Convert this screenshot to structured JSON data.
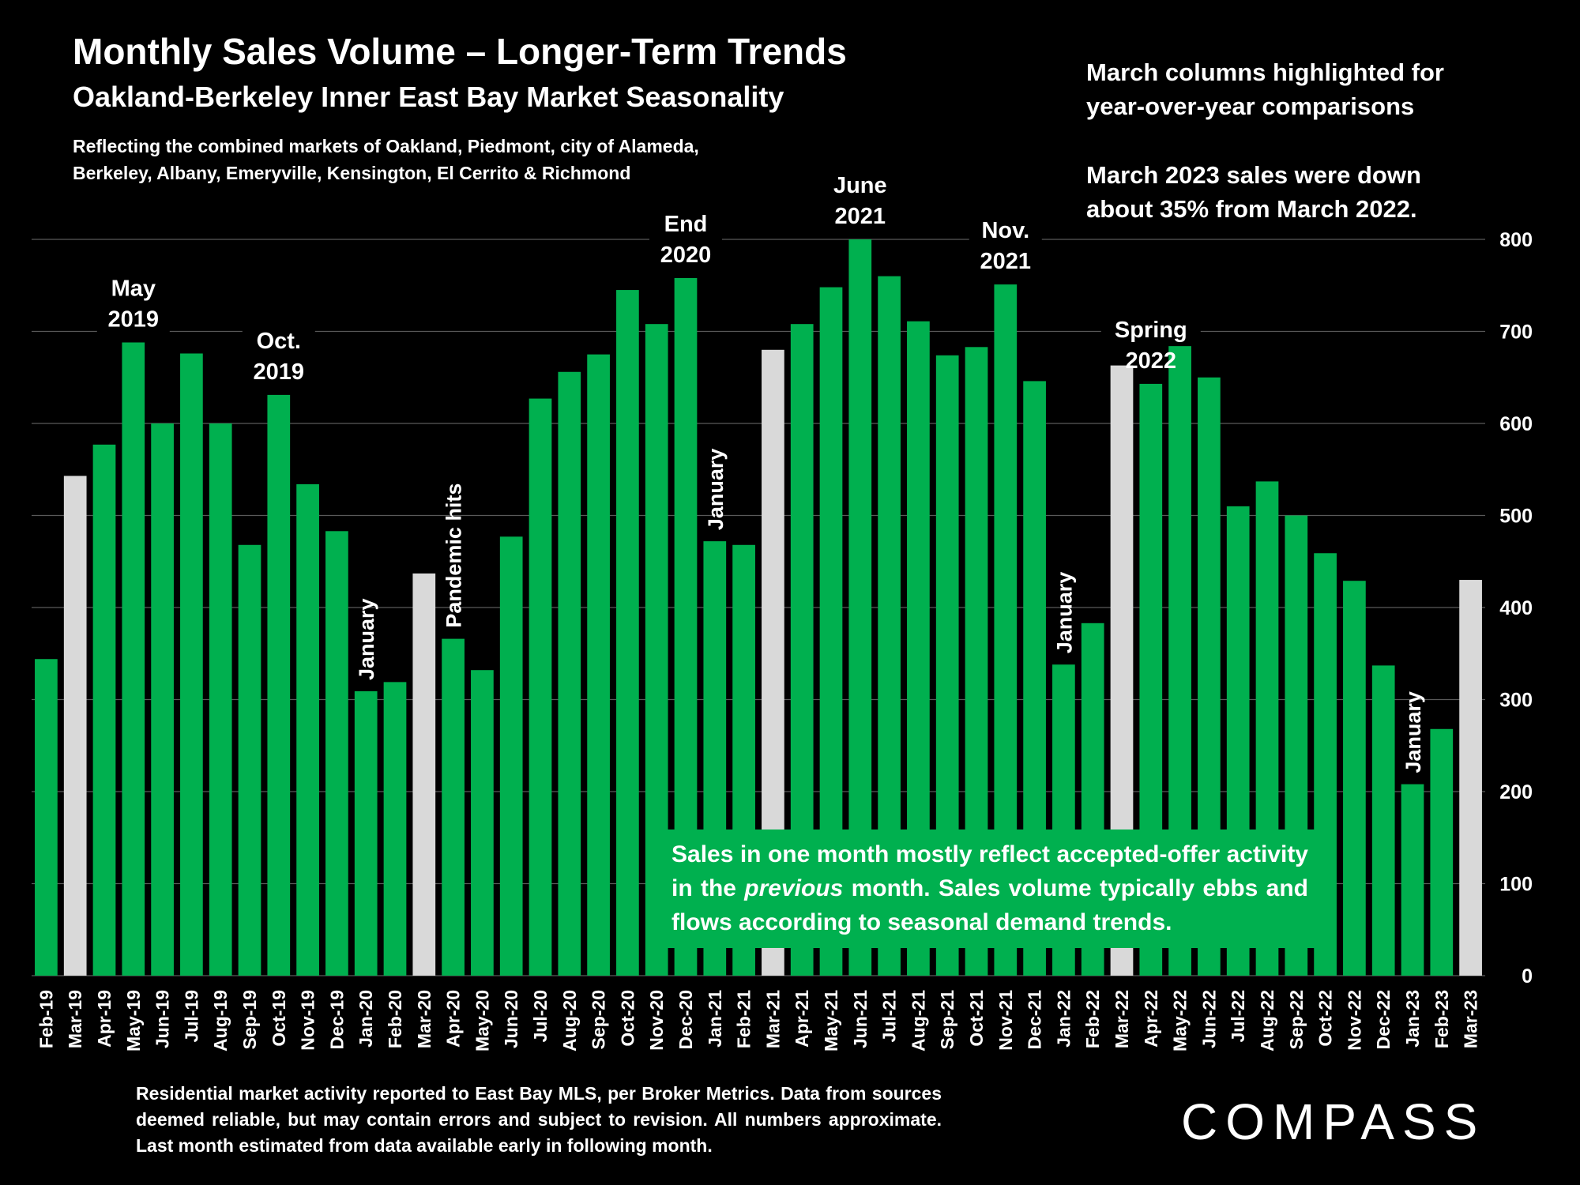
{
  "title": "Monthly Sales Volume – Longer-Term Trends",
  "subtitle": "Oakland-Berkeley Inner East Bay Market Seasonality",
  "markets_line1": "Reflecting the combined markets of Oakland, Piedmont, city of Alameda,",
  "markets_line2": "Berkeley, Albany, Emeryville, Kensington, El Cerrito & Richmond",
  "note_line1": "March columns highlighted for",
  "note_line2": "year-over-year comparisons",
  "note_line3": "March 2023 sales were down",
  "note_line4": "about 35% from March 2022.",
  "callout": {
    "before": "Sales in one month mostly reflect accepted-offer activity in the ",
    "italic": "previous",
    "after": " month. Sales volume typically ebbs and flows according to seasonal demand trends."
  },
  "footnote": "Residential market activity reported to East Bay MLS, per Broker Metrics. Data from sources deemed reliable, but may contain errors and subject to revision. All numbers approximate. Last month estimated from data available early in following month.",
  "logo_text": "COMPASS",
  "colors": {
    "green": "#00b04f",
    "march": "#d9d9d9",
    "background": "#000000",
    "grid": "#595959"
  },
  "chart_data": {
    "type": "bar",
    "categories": [
      "Feb-19",
      "Mar-19",
      "Apr-19",
      "May-19",
      "Jun-19",
      "Jul-19",
      "Aug-19",
      "Sep-19",
      "Oct-19",
      "Nov-19",
      "Dec-19",
      "Jan-20",
      "Feb-20",
      "Mar-20",
      "Apr-20",
      "May-20",
      "Jun-20",
      "Jul-20",
      "Aug-20",
      "Sep-20",
      "Oct-20",
      "Nov-20",
      "Dec-20",
      "Jan-21",
      "Feb-21",
      "Mar-21",
      "Apr-21",
      "May-21",
      "Jun-21",
      "Jul-21",
      "Aug-21",
      "Sep-21",
      "Oct-21",
      "Nov-21",
      "Dec-21",
      "Jan-22",
      "Feb-22",
      "Mar-22",
      "Apr-22",
      "May-22",
      "Jun-22",
      "Jul-22",
      "Aug-22",
      "Sep-22",
      "Oct-22",
      "Nov-22",
      "Dec-22",
      "Jan-23",
      "Feb-23",
      "Mar-23"
    ],
    "values": [
      344,
      543,
      577,
      688,
      600,
      676,
      600,
      468,
      631,
      534,
      483,
      309,
      319,
      437,
      366,
      332,
      477,
      627,
      656,
      675,
      745,
      708,
      758,
      472,
      468,
      680,
      708,
      748,
      800,
      760,
      711,
      674,
      683,
      751,
      646,
      338,
      383,
      663,
      643,
      684,
      650,
      510,
      537,
      500,
      459,
      429,
      337,
      208,
      268,
      430
    ],
    "highlight_month": "Mar",
    "ylim": [
      0,
      800
    ],
    "yticks": [
      0,
      100,
      200,
      300,
      400,
      500,
      600,
      700,
      800
    ],
    "grid": true,
    "annotations": [
      {
        "text": [
          "May",
          "2019"
        ],
        "at": "May-19",
        "orientation": "horizontal"
      },
      {
        "text": [
          "Oct.",
          "2019"
        ],
        "at": "Oct-19",
        "orientation": "horizontal"
      },
      {
        "text": [
          "January"
        ],
        "at": "Jan-20",
        "orientation": "vertical"
      },
      {
        "text": [
          "Pandemic hits"
        ],
        "at": "Apr-20",
        "orientation": "vertical"
      },
      {
        "text": [
          "End",
          "2020"
        ],
        "at": "Dec-20",
        "orientation": "horizontal"
      },
      {
        "text": [
          "January"
        ],
        "at": "Jan-21",
        "orientation": "vertical"
      },
      {
        "text": [
          "June",
          "2021"
        ],
        "at": "Jun-21",
        "orientation": "horizontal"
      },
      {
        "text": [
          "Nov.",
          "2021"
        ],
        "at": "Nov-21",
        "orientation": "horizontal"
      },
      {
        "text": [
          "January"
        ],
        "at": "Jan-22",
        "orientation": "vertical"
      },
      {
        "text": [
          "Spring",
          "2022"
        ],
        "at": "Apr-22",
        "orientation": "horizontal"
      },
      {
        "text": [
          "January"
        ],
        "at": "Jan-23",
        "orientation": "vertical"
      }
    ]
  }
}
